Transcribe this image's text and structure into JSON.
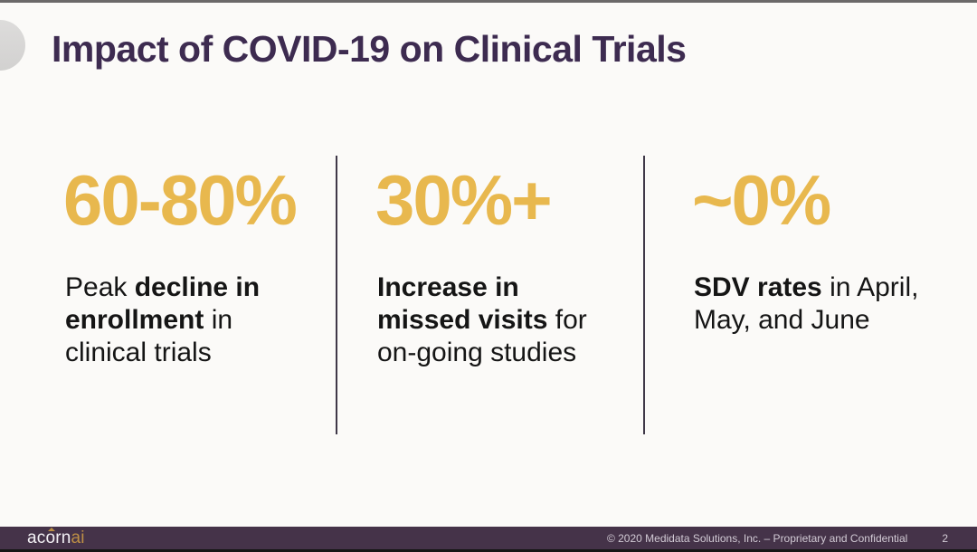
{
  "slide": {
    "title": "Impact of COVID-19 on Clinical Trials",
    "stats": [
      {
        "value": "60-80%",
        "description_plain": "Peak decline in enrollment in clinical trials",
        "lines": [
          [
            {
              "t": "Peak ",
              "b": false
            },
            {
              "t": "decline in",
              "b": true
            }
          ],
          [
            {
              "t": "enrollment",
              "b": true
            },
            {
              "t": " in",
              "b": false
            }
          ],
          [
            {
              "t": "clinical trials",
              "b": false
            }
          ]
        ]
      },
      {
        "value": "30%+",
        "description_plain": "Increase in missed visits for on-going studies",
        "lines": [
          [
            {
              "t": "Increase in",
              "b": true
            }
          ],
          [
            {
              "t": "missed visits",
              "b": true
            },
            {
              "t": " for",
              "b": false
            }
          ],
          [
            {
              "t": "on-going studies",
              "b": false
            }
          ]
        ]
      },
      {
        "value": "~0%",
        "description_plain": "SDV rates in April, May, and June",
        "lines": [
          [
            {
              "t": "SDV rates",
              "b": true
            },
            {
              "t": " in April,",
              "b": false
            }
          ],
          [
            {
              "t": "May, and June",
              "b": false
            }
          ]
        ]
      }
    ]
  },
  "footer": {
    "logo_name": "acorn",
    "logo_suffix": "ai",
    "copyright": "© 2020 Medidata Solutions, Inc. – Proprietary and Confidential",
    "page_number": "2"
  },
  "colors": {
    "accent_gold": "#e8b84e",
    "title_purple": "#3d2b50",
    "footer_purple": "#453349",
    "footer_text": "#d2cbd5"
  }
}
